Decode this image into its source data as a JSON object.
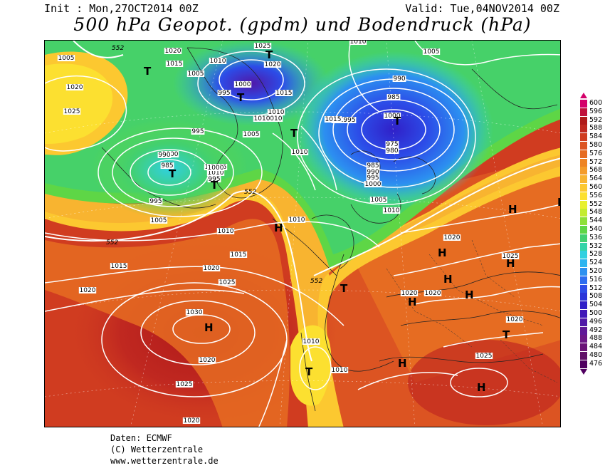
{
  "header": {
    "init": "Init : Mon,27OCT2014 00Z",
    "valid": "Valid: Tue,04NOV2014 00Z",
    "title": "500 hPa Geopot. (gpdm) und Bodendruck (hPa)"
  },
  "credits": {
    "line1": "Daten: ECMWF",
    "line2": "(C) Wetterzentrale",
    "line3": "www.wetterzentrale.de"
  },
  "legend": {
    "levels": [
      "600",
      "596",
      "592",
      "588",
      "584",
      "580",
      "576",
      "572",
      "568",
      "564",
      "560",
      "556",
      "552",
      "548",
      "544",
      "540",
      "536",
      "532",
      "528",
      "524",
      "520",
      "516",
      "512",
      "508",
      "504",
      "500",
      "496",
      "492",
      "488",
      "484",
      "480",
      "476"
    ],
    "colors": [
      "#d4006a",
      "#c0103a",
      "#b01a1a",
      "#c02820",
      "#d03c20",
      "#dc5422",
      "#e66c22",
      "#ee8424",
      "#f49c2a",
      "#f8b430",
      "#fcc830",
      "#fce030",
      "#e8f030",
      "#c4ec30",
      "#8ee038",
      "#5ed646",
      "#42d070",
      "#34d4a8",
      "#30d0e0",
      "#2cb4f0",
      "#2c90f0",
      "#2c6cf0",
      "#2c4ce8",
      "#2a34d8",
      "#3020c8",
      "#4018b8",
      "#5018a8",
      "#601898",
      "#6c1888",
      "#6a1478",
      "#601068",
      "#500060"
    ]
  },
  "map": {
    "pressure_labels": [
      "1005",
      "1020",
      "1025",
      "1020",
      "1015",
      "1005",
      "1010",
      "1025",
      "1020",
      "1000",
      "1015",
      "1010",
      "1010",
      "1010",
      "1005",
      "995",
      "1000",
      "995",
      "1010",
      "990",
      "1005",
      "1010",
      "1015",
      "995",
      "985",
      "1000",
      "975",
      "980",
      "985",
      "990",
      "995",
      "1000",
      "1005",
      "1010",
      "1010",
      "1005",
      "990",
      "985",
      "1005",
      "1000",
      "995",
      "995",
      "1010",
      "1020",
      "1015",
      "1015",
      "1020",
      "1025",
      "1020",
      "1030",
      "1025",
      "1020",
      "1010",
      "1010",
      "1020",
      "1020",
      "1025",
      "1020",
      "1020",
      "1025",
      "1010",
      "990",
      "1005"
    ],
    "geopot_labels": [
      "552",
      "552",
      "552",
      "552"
    ],
    "highs": [
      "H",
      "H",
      "H",
      "H",
      "H",
      "H",
      "H",
      "H",
      "H",
      "H",
      "H"
    ],
    "lows": [
      "T",
      "T",
      "T",
      "T",
      "T",
      "T",
      "T",
      "T",
      "T",
      "T"
    ]
  }
}
